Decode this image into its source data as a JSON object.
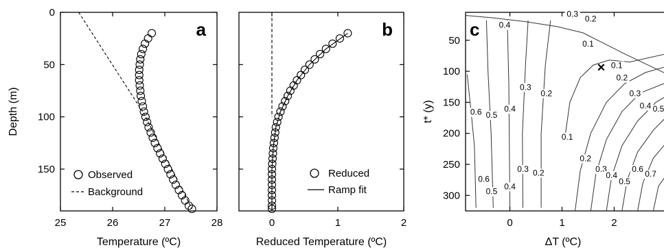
{
  "chart_data": [
    {
      "panel": "a",
      "type": "scatter",
      "xlabel": "Temperature (ºC)",
      "ylabel": "Depth (m)",
      "xlim": [
        25,
        28
      ],
      "ylim": [
        0,
        190
      ],
      "y_inverted": true,
      "xticks": [
        "25",
        "26",
        "27",
        "28"
      ],
      "yticks": [
        "0",
        "50",
        "100",
        "150"
      ],
      "series": [
        {
          "name": "Observed",
          "marker": "circle",
          "points": [
            [
              26.75,
              20
            ],
            [
              26.68,
              25
            ],
            [
              26.62,
              30
            ],
            [
              26.58,
              35
            ],
            [
              26.55,
              40
            ],
            [
              26.53,
              45
            ],
            [
              26.52,
              50
            ],
            [
              26.51,
              55
            ],
            [
              26.51,
              60
            ],
            [
              26.51,
              65
            ],
            [
              26.52,
              70
            ],
            [
              26.53,
              75
            ],
            [
              26.54,
              80
            ],
            [
              26.56,
              85
            ],
            [
              26.58,
              90
            ],
            [
              26.6,
              95
            ],
            [
              26.63,
              100
            ],
            [
              26.66,
              105
            ],
            [
              26.69,
              110
            ],
            [
              26.73,
              115
            ],
            [
              26.77,
              120
            ],
            [
              26.81,
              125
            ],
            [
              26.86,
              130
            ],
            [
              26.91,
              135
            ],
            [
              26.96,
              140
            ],
            [
              27.01,
              145
            ],
            [
              27.06,
              150
            ],
            [
              27.11,
              155
            ],
            [
              27.16,
              160
            ],
            [
              27.21,
              165
            ],
            [
              27.27,
              170
            ],
            [
              27.33,
              175
            ],
            [
              27.39,
              180
            ],
            [
              27.46,
              185
            ],
            [
              27.52,
              188
            ]
          ]
        },
        {
          "name": "Background",
          "style": "dashed",
          "points": [
            [
              25.35,
              0
            ],
            [
              26.6,
              97
            ],
            [
              27.52,
              188
            ]
          ]
        }
      ]
    },
    {
      "panel": "b",
      "type": "scatter",
      "xlabel": "Reduced Temperature (ºC)",
      "ylabel": "",
      "xlim": [
        -0.5,
        2
      ],
      "ylim": [
        0,
        190
      ],
      "y_inverted": true,
      "xticks": [
        "0",
        "1",
        "2"
      ],
      "series": [
        {
          "name": "Reduced",
          "marker": "circle",
          "points": [
            [
              1.15,
              20
            ],
            [
              1.03,
              25
            ],
            [
              0.92,
              30
            ],
            [
              0.82,
              35
            ],
            [
              0.73,
              40
            ],
            [
              0.65,
              45
            ],
            [
              0.57,
              50
            ],
            [
              0.5,
              55
            ],
            [
              0.44,
              60
            ],
            [
              0.38,
              65
            ],
            [
              0.33,
              70
            ],
            [
              0.28,
              75
            ],
            [
              0.24,
              80
            ],
            [
              0.2,
              85
            ],
            [
              0.16,
              90
            ],
            [
              0.13,
              95
            ],
            [
              0.1,
              100
            ],
            [
              0.08,
              105
            ],
            [
              0.06,
              110
            ],
            [
              0.05,
              115
            ],
            [
              0.04,
              120
            ],
            [
              0.03,
              125
            ],
            [
              0.02,
              130
            ],
            [
              0.015,
              135
            ],
            [
              0.01,
              140
            ],
            [
              0.005,
              145
            ],
            [
              0.0,
              150
            ],
            [
              0.0,
              155
            ],
            [
              0.0,
              160
            ],
            [
              0.0,
              165
            ],
            [
              0.0,
              170
            ],
            [
              0.0,
              175
            ],
            [
              0.0,
              180
            ],
            [
              0.0,
              185
            ],
            [
              0.0,
              188
            ]
          ]
        },
        {
          "name": "Ramp fit",
          "style": "solid",
          "points": [
            [
              1.15,
              20
            ],
            [
              0.82,
              35
            ],
            [
              0.57,
              50
            ],
            [
              0.38,
              65
            ],
            [
              0.24,
              80
            ],
            [
              0.13,
              95
            ],
            [
              0.06,
              110
            ],
            [
              0.02,
              130
            ],
            [
              0.0,
              150
            ],
            [
              0.0,
              188
            ]
          ]
        },
        {
          "name": "",
          "style": "dashed",
          "points": [
            [
              0,
              0
            ],
            [
              0,
              100
            ]
          ]
        }
      ]
    },
    {
      "panel": "c",
      "type": "contour",
      "xlabel": "ΔT (ºC)",
      "ylabel": "t* (y)",
      "xlim": [
        -0.85,
        3.1
      ],
      "ylim": [
        5,
        325
      ],
      "y_inverted": true,
      "xticks": [
        "0",
        "1",
        "2",
        "3"
      ],
      "yticks": [
        "50",
        "100",
        "150",
        "200",
        "250",
        "300"
      ],
      "marker": {
        "symbol": "x",
        "x": 1.75,
        "y": 93
      },
      "contour_labels": [
        {
          "text": "0.4",
          "x": -0.1,
          "y": 30
        },
        {
          "text": "0.3",
          "x": 1.2,
          "y": 12
        },
        {
          "text": "0.2",
          "x": 1.55,
          "y": 20
        },
        {
          "text": "0.1",
          "x": 1.5,
          "y": 60
        },
        {
          "text": "0.1",
          "x": 2.05,
          "y": 95
        },
        {
          "text": "0.2",
          "x": 2.15,
          "y": 115
        },
        {
          "text": "0.3",
          "x": 2.4,
          "y": 140
        },
        {
          "text": "0.4",
          "x": 2.6,
          "y": 160
        },
        {
          "text": "0.5",
          "x": 2.85,
          "y": 165
        },
        {
          "text": "0.6",
          "x": -0.65,
          "y": 170
        },
        {
          "text": "0.5",
          "x": -0.35,
          "y": 175
        },
        {
          "text": "0.4",
          "x": 0.0,
          "y": 165
        },
        {
          "text": "0.3",
          "x": 0.3,
          "y": 130
        },
        {
          "text": "0.2",
          "x": 0.7,
          "y": 140
        },
        {
          "text": "0.1",
          "x": 1.1,
          "y": 210
        },
        {
          "text": "0.2",
          "x": 1.45,
          "y": 245
        },
        {
          "text": "0.3",
          "x": 1.75,
          "y": 262
        },
        {
          "text": "0.4",
          "x": 1.95,
          "y": 272
        },
        {
          "text": "0.5",
          "x": 2.2,
          "y": 282
        },
        {
          "text": "0.6",
          "x": 2.45,
          "y": 262
        },
        {
          "text": "0.7",
          "x": 2.7,
          "y": 270
        },
        {
          "text": "0.6",
          "x": -0.5,
          "y": 278
        },
        {
          "text": "0.5",
          "x": -0.35,
          "y": 298
        },
        {
          "text": "0.4",
          "x": 0.0,
          "y": 290
        },
        {
          "text": "0.3",
          "x": 0.25,
          "y": 262
        },
        {
          "text": "0.2",
          "x": 0.55,
          "y": 268
        }
      ]
    }
  ],
  "legend_a": {
    "observed": "Observed",
    "background": "Background"
  },
  "legend_b": {
    "reduced": "Reduced",
    "ramp": "Ramp fit"
  },
  "panel_letters": {
    "a": "a",
    "b": "b",
    "c": "c"
  },
  "cross_symbol": "×"
}
